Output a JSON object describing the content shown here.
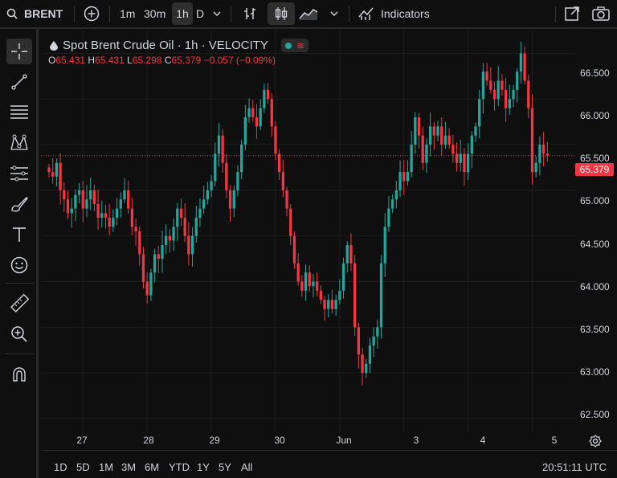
{
  "toolbar": {
    "symbol": "BRENT",
    "intervals": [
      "1m",
      "30m",
      "1h",
      "D"
    ],
    "selected_interval": "1h",
    "indicators_label": "Indicators"
  },
  "legend": {
    "title": "Spot Brent Crude Oil · 1h · VELOCITY",
    "ohlc": {
      "o_label": "O",
      "o": "65.431",
      "h_label": "H",
      "h": "65.431",
      "l_label": "L",
      "l": "65.298",
      "c_label": "C",
      "c": "65.379",
      "change": "−0.057 (−0.09%)"
    }
  },
  "price_axis": [
    "66.500",
    "66.000",
    "65.500",
    "65.000",
    "64.500",
    "64.000",
    "63.500",
    "63.000",
    "62.500"
  ],
  "current_price": "65.379",
  "time_axis": [
    "27",
    "28",
    "29",
    "30",
    "Jun",
    "3",
    "4",
    "5"
  ],
  "ranges": [
    "1D",
    "5D",
    "1M",
    "3M",
    "6M",
    "YTD",
    "1Y",
    "5Y",
    "All"
  ],
  "clock": "20:51:11 UTC",
  "colors": {
    "up": "#26a69a",
    "down": "#f23645",
    "background": "#0f0f0f",
    "grid": "#1e1e1e"
  },
  "chart_data": {
    "type": "candlestick",
    "price_line": 65.379,
    "ylim": [
      62.35,
      66.75
    ],
    "closes": [
      65.2,
      65.15,
      65.3,
      65.0,
      64.9,
      64.75,
      64.8,
      64.95,
      65.0,
      64.8,
      64.9,
      65.0,
      64.85,
      64.7,
      64.75,
      64.7,
      64.6,
      64.7,
      64.8,
      64.9,
      65.0,
      64.8,
      64.6,
      64.55,
      64.3,
      64.0,
      63.85,
      64.1,
      64.3,
      64.25,
      64.4,
      64.5,
      64.45,
      64.6,
      64.8,
      64.7,
      64.5,
      64.3,
      64.5,
      64.7,
      64.8,
      64.9,
      65.0,
      65.1,
      65.4,
      65.6,
      65.3,
      65.0,
      64.8,
      65.0,
      65.2,
      65.5,
      65.8,
      65.9,
      65.8,
      65.7,
      65.9,
      66.1,
      66.0,
      65.7,
      65.4,
      65.2,
      65.0,
      64.8,
      64.5,
      64.2,
      64.0,
      63.9,
      64.1,
      63.95,
      64.0,
      63.9,
      63.8,
      63.7,
      63.8,
      63.7,
      63.8,
      63.9,
      64.2,
      64.4,
      64.2,
      63.5,
      63.2,
      63.0,
      63.1,
      63.3,
      63.4,
      63.5,
      64.2,
      64.6,
      64.8,
      64.9,
      65.0,
      65.2,
      65.1,
      65.2,
      65.5,
      65.8,
      65.6,
      65.3,
      65.5,
      65.7,
      65.6,
      65.7,
      65.5,
      65.6,
      65.5,
      65.4,
      65.3,
      65.4,
      65.2,
      65.4,
      65.6,
      65.7,
      66.0,
      66.3,
      66.2,
      66.1,
      66.0,
      66.2,
      66.1,
      65.9,
      66.0,
      66.1,
      66.3,
      66.5,
      66.2,
      65.9,
      65.2,
      65.3,
      65.5,
      65.4,
      65.379
    ],
    "day_labels": [
      "27",
      "28",
      "29",
      "30",
      "Jun",
      "3",
      "4",
      "5"
    ],
    "day_values_index": [
      9,
      26,
      43,
      60,
      77,
      94,
      111,
      128
    ]
  }
}
